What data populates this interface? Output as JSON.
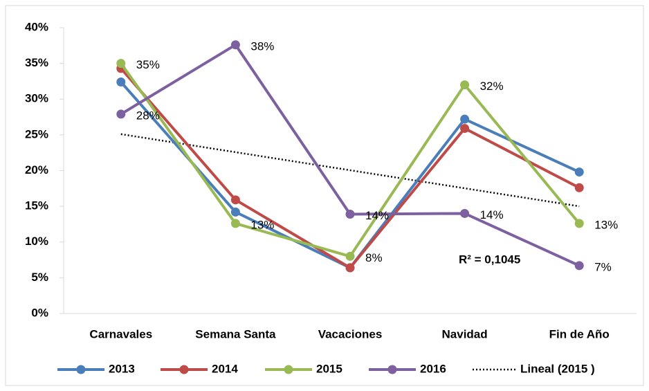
{
  "chart_data": {
    "type": "line",
    "categories": [
      "Carnavales",
      "Semana Santa",
      "Vacaciones",
      "Navidad",
      "Fin de Año"
    ],
    "series": [
      {
        "name": "2013",
        "color": "#4a7ebb",
        "values": [
          32.4,
          14.2,
          6.4,
          27.2,
          19.8
        ]
      },
      {
        "name": "2014",
        "color": "#be4b48",
        "values": [
          34.3,
          15.9,
          6.4,
          25.9,
          17.6
        ]
      },
      {
        "name": "2015",
        "color": "#98b954",
        "values": [
          35,
          12.6,
          8,
          32,
          12.6
        ],
        "value_labels": [
          "35%",
          "13%",
          "8%",
          "32%",
          "13%"
        ]
      },
      {
        "name": "2016",
        "color": "#7d60a0",
        "values": [
          27.9,
          37.6,
          13.9,
          14,
          6.7
        ],
        "value_labels": [
          "28%",
          "38%",
          "14%",
          "14%",
          "7%"
        ]
      }
    ],
    "trendline": {
      "name": "Lineal (2015 )",
      "color": "#000000",
      "start": 25.1,
      "end": 15.0
    },
    "annotation": "R² = 0,1045",
    "ylim": [
      0,
      40
    ],
    "yticks": [
      {
        "value": 0,
        "label": "0%"
      },
      {
        "value": 5,
        "label": "5%"
      },
      {
        "value": 10,
        "label": "10%"
      },
      {
        "value": 15,
        "label": "15%"
      },
      {
        "value": 20,
        "label": "20%"
      },
      {
        "value": 25,
        "label": "25%"
      },
      {
        "value": 30,
        "label": "30%"
      },
      {
        "value": 35,
        "label": "35%"
      },
      {
        "value": 40,
        "label": "40%"
      }
    ]
  }
}
